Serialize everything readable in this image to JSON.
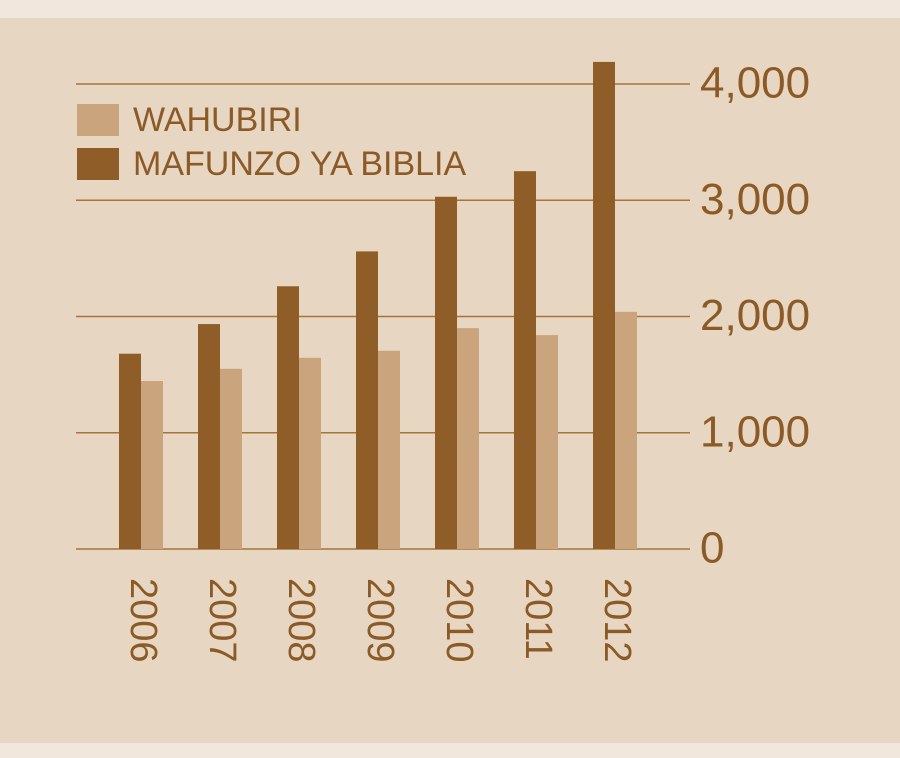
{
  "chart_data": {
    "type": "bar",
    "categories": [
      "2006",
      "2007",
      "2008",
      "2009",
      "2010",
      "2011",
      "2012"
    ],
    "series": [
      {
        "name": "WAHUBIRI",
        "color": "#c9a47d",
        "values": [
          1445,
          1550,
          1645,
          1705,
          1900,
          1840,
          2040
        ]
      },
      {
        "name": "MAFUNZO YA BIBLIA",
        "color": "#8f5d27",
        "values": [
          1680,
          1935,
          2260,
          2560,
          3030,
          3250,
          4190
        ]
      }
    ],
    "ylim": [
      0,
      4000
    ],
    "yticks": [
      0,
      {
        "value": 1000,
        "label": "1,000"
      },
      {
        "value": 2000,
        "label": "2,000"
      },
      {
        "value": 3000,
        "label": "3,000"
      },
      {
        "value": 4000,
        "label": "4,000"
      }
    ],
    "grid": true,
    "legend": "top-left"
  }
}
